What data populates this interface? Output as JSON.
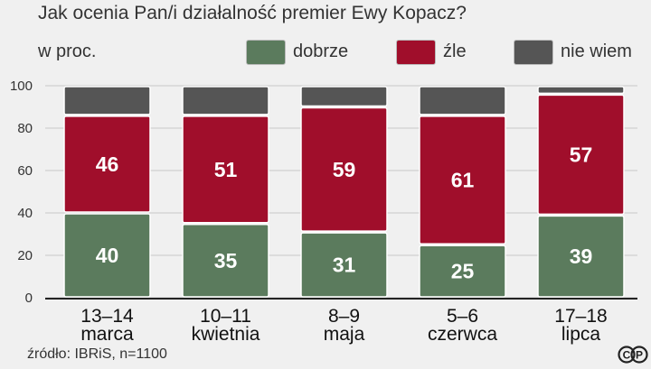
{
  "title": "Jak ocenia Pan/i działalność premier Ewy Kopacz?",
  "subtitle": "w proc.",
  "source": "źródło: IBRiS, n=1100",
  "chart_data": {
    "type": "bar",
    "stacked": true,
    "categories": [
      [
        "13–14",
        "marca"
      ],
      [
        "10–11",
        "kwietnia"
      ],
      [
        "8–9",
        "maja"
      ],
      [
        "5–6",
        "czerwca"
      ],
      [
        "17–18",
        "lipca"
      ]
    ],
    "series": [
      {
        "name": "dobrze",
        "color": "#5b7b5d",
        "values": [
          40,
          35,
          31,
          25,
          39
        ]
      },
      {
        "name": "źle",
        "color": "#a00e2b",
        "values": [
          46,
          51,
          59,
          61,
          57
        ]
      },
      {
        "name": "nie wiem",
        "color": "#555555",
        "values": [
          14,
          14,
          10,
          14,
          4
        ]
      }
    ],
    "data_labels_series": [
      "dobrze",
      "źle"
    ],
    "ylim": [
      0,
      100
    ],
    "yticks": [
      0,
      20,
      40,
      60,
      80,
      100
    ],
    "grid": true,
    "legend_placement": "top"
  }
}
